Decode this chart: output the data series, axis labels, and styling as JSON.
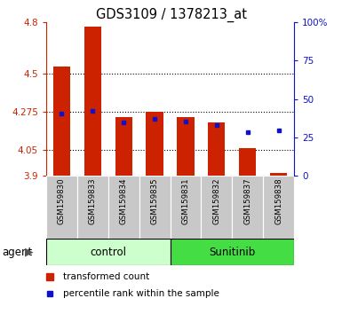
{
  "title": "GDS3109 / 1378213_at",
  "samples": [
    "GSM159830",
    "GSM159833",
    "GSM159834",
    "GSM159835",
    "GSM159831",
    "GSM159832",
    "GSM159837",
    "GSM159838"
  ],
  "red_values": [
    4.54,
    4.775,
    4.245,
    4.275,
    4.245,
    4.21,
    4.06,
    3.915
  ],
  "blue_values": [
    4.265,
    4.278,
    4.215,
    4.235,
    4.218,
    4.198,
    4.158,
    4.165
  ],
  "ylim": [
    3.9,
    4.8
  ],
  "yticks_left": [
    3.9,
    4.05,
    4.275,
    4.5,
    4.8
  ],
  "yticks_right": [
    0,
    25,
    50,
    75,
    100
  ],
  "y_right_labels": [
    "0",
    "25",
    "50",
    "75",
    "100%"
  ],
  "red_color": "#cc2200",
  "blue_color": "#1111cc",
  "bar_width": 0.55,
  "legend_red": "transformed count",
  "legend_blue": "percentile rank within the sample",
  "base_value": 3.9,
  "bg_color": "#ffffff",
  "sample_box_color": "#c8c8c8",
  "control_color": "#ccffcc",
  "sunitinib_color": "#44dd44",
  "grid_color": "#000000"
}
